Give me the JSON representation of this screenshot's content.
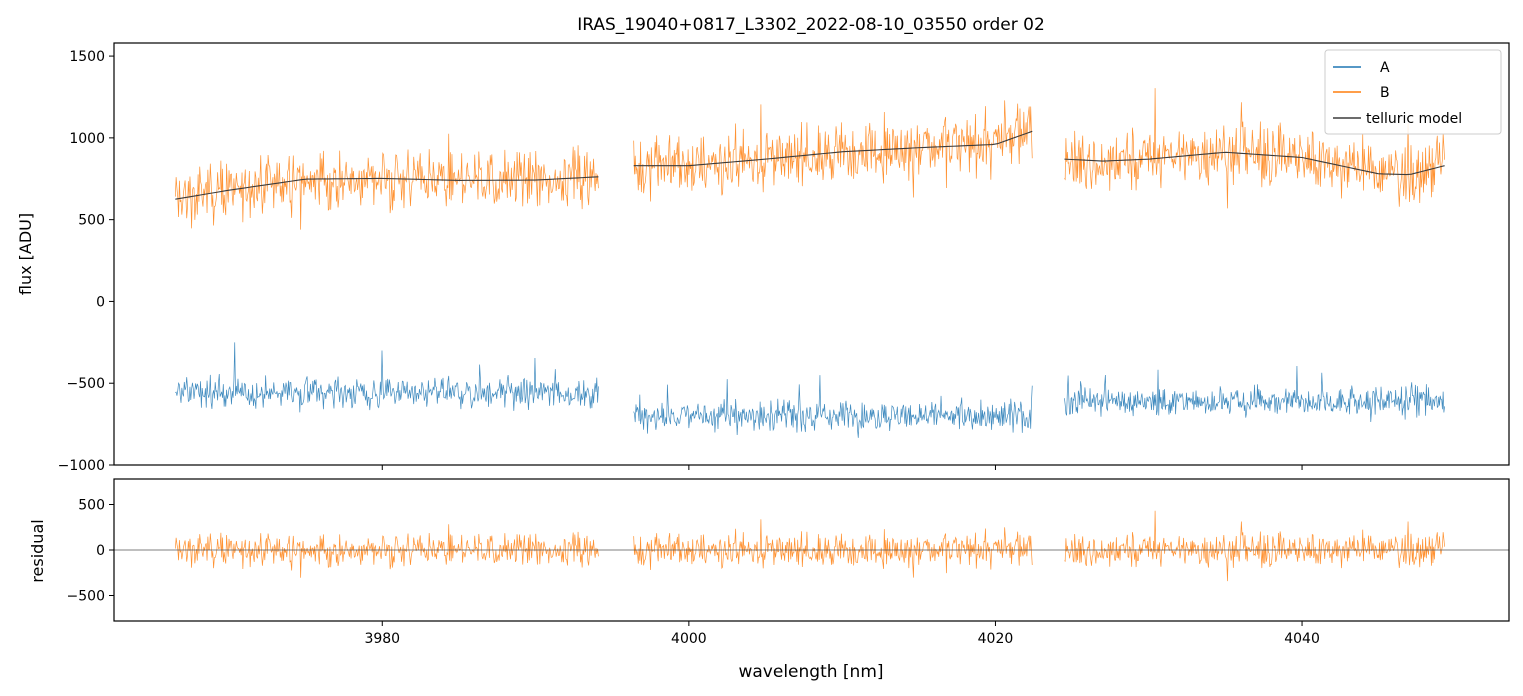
{
  "chart_data": [
    {
      "panel": "top",
      "type": "line",
      "title": "IRAS_19040+0817_L3302_2022-08-10_03550  order 02",
      "xlabel": "",
      "ylabel": "flux [ADU]",
      "xlim": [
        3962.5,
        4053.5
      ],
      "ylim": [
        -1000,
        1580
      ],
      "yticks": [
        -1000,
        -500,
        0,
        500,
        1000,
        1500
      ],
      "ytick_labels": [
        "−1000",
        "−500",
        "0",
        "500",
        "1000",
        "1500"
      ],
      "xticks": [
        3980,
        4000,
        4020,
        4040
      ],
      "legend_position": "top-right",
      "segments": [
        [
          3966.5,
          3994.1
        ],
        [
          3996.4,
          4022.4
        ],
        [
          4024.5,
          4049.3
        ]
      ],
      "series": [
        {
          "name": "A",
          "color": "#1f77b4",
          "baseline_by_segment": [
            -560,
            -700,
            -610
          ],
          "noise_amplitude": 130
        },
        {
          "name": "B",
          "color": "#ff7f0e",
          "noise_amplitude": 260
        },
        {
          "name": "telluric model",
          "color": "#3b3b3b",
          "points_by_segment": [
            [
              [
                3966.5,
                625
              ],
              [
                3970,
                680
              ],
              [
                3975,
                748
              ],
              [
                3980,
                752
              ],
              [
                3985,
                740
              ],
              [
                3990,
                742
              ],
              [
                3994.1,
                762
              ]
            ],
            [
              [
                3996.4,
                830
              ],
              [
                4000,
                830
              ],
              [
                4005,
                870
              ],
              [
                4010,
                915
              ],
              [
                4015,
                940
              ],
              [
                4020,
                960
              ],
              [
                4022.4,
                1040
              ]
            ],
            [
              [
                4024.5,
                870
              ],
              [
                4027,
                858
              ],
              [
                4030,
                870
              ],
              [
                4035,
                912
              ],
              [
                4040,
                880
              ],
              [
                4045,
                780
              ],
              [
                4047,
                775
              ],
              [
                4049.3,
                830
              ]
            ]
          ]
        }
      ]
    },
    {
      "panel": "bottom",
      "type": "line",
      "title": "",
      "xlabel": "wavelength [nm]",
      "ylabel": "residual",
      "xlim": [
        3962.5,
        4053.5
      ],
      "ylim": [
        -780,
        780
      ],
      "yticks": [
        -500,
        0,
        500
      ],
      "ytick_labels": [
        "−500",
        "0",
        "500"
      ],
      "xticks": [
        3980,
        4000,
        4020,
        4040
      ],
      "xtick_labels": [
        "3980",
        "4000",
        "4020",
        "4040"
      ],
      "series": [
        {
          "name": "residual B",
          "color": "#ff7f0e",
          "noise_amplitude": 260
        },
        {
          "name": "zero line",
          "color": "#555555",
          "value": 0
        }
      ]
    }
  ]
}
